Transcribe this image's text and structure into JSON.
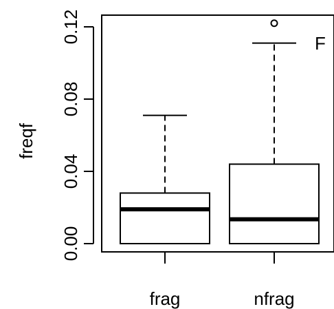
{
  "chart_data": {
    "type": "boxplot",
    "title": "",
    "xlabel": "",
    "ylabel": "freqf",
    "panel_label": "F",
    "ylim": [
      0,
      0.122
    ],
    "yticks": [
      0.0,
      0.04,
      0.08,
      0.12
    ],
    "ytick_labels": [
      "0.00",
      "0.04",
      "0.08",
      "0.12"
    ],
    "categories": [
      "frag",
      "nfrag"
    ],
    "boxes": [
      {
        "category": "frag",
        "min": 0.0,
        "q1": 0.0,
        "median": 0.019,
        "q3": 0.028,
        "max": 0.071,
        "outliers": []
      },
      {
        "category": "nfrag",
        "min": 0.0,
        "q1": 0.0,
        "median": 0.0135,
        "q3": 0.044,
        "max": 0.111,
        "outliers": [
          0.122
        ]
      }
    ],
    "grid": false,
    "legend": "none"
  }
}
